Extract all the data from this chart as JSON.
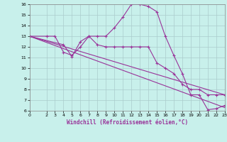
{
  "xlabel": "Windchill (Refroidissement éolien,°C)",
  "background_color": "#c8f0eb",
  "grid_color": "#aacccc",
  "line_color": "#993399",
  "xlim": [
    0,
    23
  ],
  "ylim": [
    6,
    16
  ],
  "xticks": [
    0,
    2,
    3,
    4,
    5,
    6,
    7,
    8,
    9,
    10,
    11,
    12,
    13,
    14,
    15,
    16,
    17,
    18,
    19,
    20,
    21,
    22,
    23
  ],
  "yticks": [
    6,
    7,
    8,
    9,
    10,
    11,
    12,
    13,
    14,
    15,
    16
  ],
  "line1_x": [
    0,
    2,
    3,
    4,
    5,
    6,
    7,
    8,
    9,
    10,
    11,
    12,
    13,
    14,
    15,
    16,
    17,
    18,
    19,
    20,
    21,
    22,
    23
  ],
  "line1_y": [
    13,
    13,
    13,
    11.5,
    11.2,
    12.0,
    13.0,
    13.0,
    13.0,
    13.8,
    14.8,
    16.0,
    16.0,
    15.8,
    15.3,
    13.0,
    11.2,
    9.5,
    7.5,
    7.5,
    6.1,
    6.2,
    6.5
  ],
  "line2_x": [
    0,
    23
  ],
  "line2_y": [
    13,
    7.5
  ],
  "line3_x": [
    0,
    23
  ],
  "line3_y": [
    13,
    6.3
  ],
  "line4_x": [
    0,
    4,
    5,
    6,
    7,
    8,
    9,
    10,
    11,
    12,
    13,
    14,
    15,
    16,
    17,
    18,
    19,
    20,
    21,
    22,
    23
  ],
  "line4_y": [
    13,
    12.2,
    11.1,
    12.5,
    13.0,
    12.2,
    12.0,
    12.0,
    12.0,
    12.0,
    12.0,
    12.0,
    10.5,
    10.0,
    9.5,
    8.5,
    8.0,
    8.0,
    7.5,
    7.5,
    7.5
  ]
}
